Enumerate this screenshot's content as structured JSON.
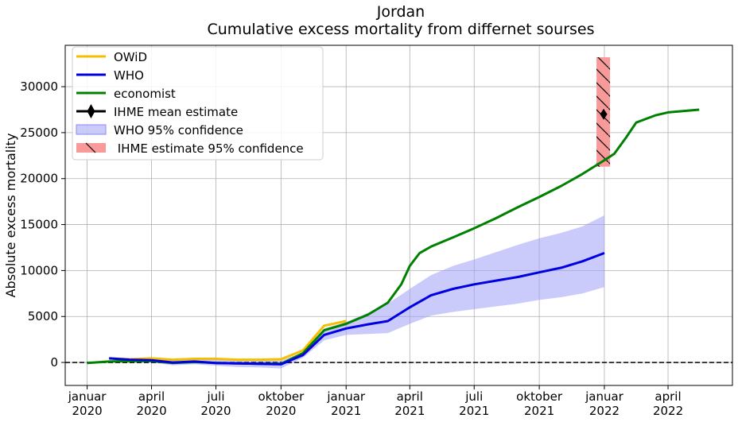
{
  "chart_data": {
    "type": "line",
    "title": "Jordan",
    "subtitle": "Cumulative excess mortality from differnet sourses",
    "xlabel": "",
    "ylabel": "Absolute excess mortality",
    "xlim": [
      "2019-12-01",
      "2022-07-01"
    ],
    "ylim": [
      -2500,
      34500
    ],
    "grid": true,
    "legend_position": "top-left",
    "x_ticks": [
      {
        "date": "2020-01-01",
        "label": [
          "januar",
          "2020"
        ]
      },
      {
        "date": "2020-04-01",
        "label": [
          "april",
          "2020"
        ]
      },
      {
        "date": "2020-07-01",
        "label": [
          "juli",
          "2020"
        ]
      },
      {
        "date": "2020-10-01",
        "label": [
          "oktober",
          "2020"
        ]
      },
      {
        "date": "2021-01-01",
        "label": [
          "januar",
          "2021"
        ]
      },
      {
        "date": "2021-04-01",
        "label": [
          "april",
          "2021"
        ]
      },
      {
        "date": "2021-07-01",
        "label": [
          "juli",
          "2021"
        ]
      },
      {
        "date": "2021-10-01",
        "label": [
          "oktober",
          "2021"
        ]
      },
      {
        "date": "2022-01-01",
        "label": [
          "januar",
          "2022"
        ]
      },
      {
        "date": "2022-04-01",
        "label": [
          "april",
          "2022"
        ]
      }
    ],
    "y_ticks": [
      0,
      5000,
      10000,
      15000,
      20000,
      25000,
      30000
    ],
    "reference_line": {
      "y": 0,
      "style": "dashed",
      "color": "#000000"
    },
    "series": [
      {
        "name": "OWiD",
        "color": "#f5bf00",
        "points": [
          [
            "2020-02-01",
            450
          ],
          [
            "2020-03-01",
            350
          ],
          [
            "2020-04-01",
            450
          ],
          [
            "2020-05-01",
            300
          ],
          [
            "2020-06-01",
            400
          ],
          [
            "2020-07-01",
            400
          ],
          [
            "2020-08-01",
            300
          ],
          [
            "2020-09-01",
            300
          ],
          [
            "2020-10-01",
            350
          ],
          [
            "2020-11-01",
            1300
          ],
          [
            "2020-12-01",
            4000
          ],
          [
            "2021-01-01",
            4500
          ]
        ]
      },
      {
        "name": "WHO",
        "color": "#0000e0",
        "points": [
          [
            "2020-02-01",
            450
          ],
          [
            "2020-03-01",
            300
          ],
          [
            "2020-04-01",
            250
          ],
          [
            "2020-05-01",
            0
          ],
          [
            "2020-06-01",
            100
          ],
          [
            "2020-07-01",
            -50
          ],
          [
            "2020-08-01",
            -100
          ],
          [
            "2020-09-01",
            -150
          ],
          [
            "2020-10-01",
            -200
          ],
          [
            "2020-11-01",
            800
          ],
          [
            "2020-12-01",
            3000
          ],
          [
            "2021-01-01",
            3700
          ],
          [
            "2021-02-01",
            4150
          ],
          [
            "2021-03-01",
            4500
          ],
          [
            "2021-04-01",
            6000
          ],
          [
            "2021-05-01",
            7300
          ],
          [
            "2021-06-01",
            8000
          ],
          [
            "2021-07-01",
            8500
          ],
          [
            "2021-08-01",
            8900
          ],
          [
            "2021-09-01",
            9300
          ],
          [
            "2021-10-01",
            9800
          ],
          [
            "2021-11-01",
            10300
          ],
          [
            "2021-12-01",
            11000
          ],
          [
            "2022-01-01",
            11900
          ]
        ]
      },
      {
        "name": "economist",
        "color": "#008000",
        "points": [
          [
            "2020-01-01",
            -50
          ],
          [
            "2020-02-01",
            100
          ],
          [
            "2020-03-01",
            150
          ],
          [
            "2020-04-01",
            150
          ],
          [
            "2020-05-01",
            -50
          ],
          [
            "2020-06-01",
            50
          ],
          [
            "2020-07-01",
            -50
          ],
          [
            "2020-08-01",
            -100
          ],
          [
            "2020-09-01",
            -150
          ],
          [
            "2020-10-01",
            -150
          ],
          [
            "2020-11-01",
            1000
          ],
          [
            "2020-12-01",
            3500
          ],
          [
            "2021-01-01",
            4200
          ],
          [
            "2021-02-01",
            5200
          ],
          [
            "2021-03-01",
            6500
          ],
          [
            "2021-03-20",
            8500
          ],
          [
            "2021-04-01",
            10500
          ],
          [
            "2021-04-15",
            11900
          ],
          [
            "2021-05-01",
            12600
          ],
          [
            "2021-06-01",
            13600
          ],
          [
            "2021-07-01",
            14600
          ],
          [
            "2021-08-01",
            15700
          ],
          [
            "2021-09-01",
            16900
          ],
          [
            "2021-10-01",
            18000
          ],
          [
            "2021-11-01",
            19200
          ],
          [
            "2021-12-01",
            20500
          ],
          [
            "2022-01-01",
            22000
          ],
          [
            "2022-01-15",
            22700
          ],
          [
            "2022-02-01",
            24500
          ],
          [
            "2022-02-15",
            26100
          ],
          [
            "2022-03-01",
            26500
          ],
          [
            "2022-03-15",
            26900
          ],
          [
            "2022-04-01",
            27200
          ],
          [
            "2022-05-15",
            27500
          ]
        ]
      }
    ],
    "who_confidence": {
      "name": "WHO 95% confidence",
      "color": "#a0a0f8",
      "upper": [
        [
          "2020-02-01",
          500
        ],
        [
          "2020-03-01",
          450
        ],
        [
          "2020-04-01",
          550
        ],
        [
          "2020-05-01",
          300
        ],
        [
          "2020-06-01",
          450
        ],
        [
          "2020-07-01",
          400
        ],
        [
          "2020-08-01",
          300
        ],
        [
          "2020-09-01",
          200
        ],
        [
          "2020-10-01",
          200
        ],
        [
          "2020-11-01",
          1100
        ],
        [
          "2020-12-01",
          3700
        ],
        [
          "2021-01-01",
          4400
        ],
        [
          "2021-02-01",
          5400
        ],
        [
          "2021-03-01",
          6400
        ],
        [
          "2021-04-01",
          8000
        ],
        [
          "2021-05-01",
          9500
        ],
        [
          "2021-06-01",
          10500
        ],
        [
          "2021-07-01",
          11200
        ],
        [
          "2021-08-01",
          12000
        ],
        [
          "2021-09-01",
          12800
        ],
        [
          "2021-10-01",
          13500
        ],
        [
          "2021-11-01",
          14100
        ],
        [
          "2021-12-01",
          14800
        ],
        [
          "2022-01-01",
          16000
        ]
      ],
      "lower": [
        [
          "2020-02-01",
          400
        ],
        [
          "2020-03-01",
          200
        ],
        [
          "2020-04-01",
          0
        ],
        [
          "2020-05-01",
          -300
        ],
        [
          "2020-06-01",
          -200
        ],
        [
          "2020-07-01",
          -350
        ],
        [
          "2020-08-01",
          -500
        ],
        [
          "2020-09-01",
          -550
        ],
        [
          "2020-10-01",
          -650
        ],
        [
          "2020-11-01",
          500
        ],
        [
          "2020-12-01",
          2400
        ],
        [
          "2021-01-01",
          3000
        ],
        [
          "2021-02-01",
          3100
        ],
        [
          "2021-03-01",
          3200
        ],
        [
          "2021-04-01",
          4200
        ],
        [
          "2021-05-01",
          5100
        ],
        [
          "2021-06-01",
          5500
        ],
        [
          "2021-07-01",
          5800
        ],
        [
          "2021-08-01",
          6100
        ],
        [
          "2021-09-01",
          6400
        ],
        [
          "2021-10-01",
          6800
        ],
        [
          "2021-11-01",
          7100
        ],
        [
          "2021-12-01",
          7500
        ],
        [
          "2022-01-01",
          8200
        ]
      ]
    },
    "ihme": {
      "mean_name": "IHME mean estimate",
      "ci_name": " IHME estimate 95% confidence",
      "date": "2021-12-31",
      "mean": 27000,
      "ci_low": 21300,
      "ci_high": 33200,
      "marker_color": "#000000",
      "box_color": "#f99a9a"
    }
  }
}
